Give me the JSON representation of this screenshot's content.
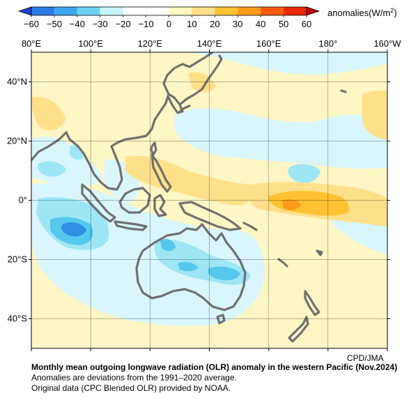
{
  "colorbar": {
    "ticks": [
      "−60",
      "−50",
      "−40",
      "−30",
      "−20",
      "−10",
      "0",
      "10",
      "20",
      "30",
      "40",
      "50",
      "60"
    ],
    "unit_label": "anomalies(W/m",
    "unit_sup": "2",
    "unit_close": ")",
    "colors": [
      "#1f3fd6",
      "#2b7be3",
      "#3fa8f0",
      "#6fd0f6",
      "#c8f4fb",
      "#ffffff",
      "#ffffff",
      "#fff6c0",
      "#ffe08a",
      "#ffc233",
      "#ff9a1a",
      "#ff5a0f",
      "#e62a0a",
      "#c20000"
    ]
  },
  "map": {
    "lon_labels": [
      "80°E",
      "100°E",
      "120°E",
      "140°E",
      "160°E",
      "180°",
      "160°W"
    ],
    "lat_labels": [
      "40°N",
      "20°N",
      "0°",
      "20°S",
      "40°S"
    ],
    "palette": {
      "neg10": "#d8f6fc",
      "neg20": "#9ee6f6",
      "neg30": "#56c8ee",
      "neg40": "#2f8fe3",
      "pos10": "#fff6c5",
      "pos20": "#ffe08a",
      "pos30": "#ffc233",
      "pos40": "#ff9a1a",
      "coast": "#707070"
    }
  },
  "credit": "CPD/JMA",
  "caption": {
    "title": "Monthly mean outgoing longwave radiation (OLR) anomaly in the western Pacific (Nov.2024)",
    "line2": "Anomalies are deviations from the 1991–2020 average.",
    "line3": "Original data (CPC Blended OLR) provided by NOAA."
  }
}
